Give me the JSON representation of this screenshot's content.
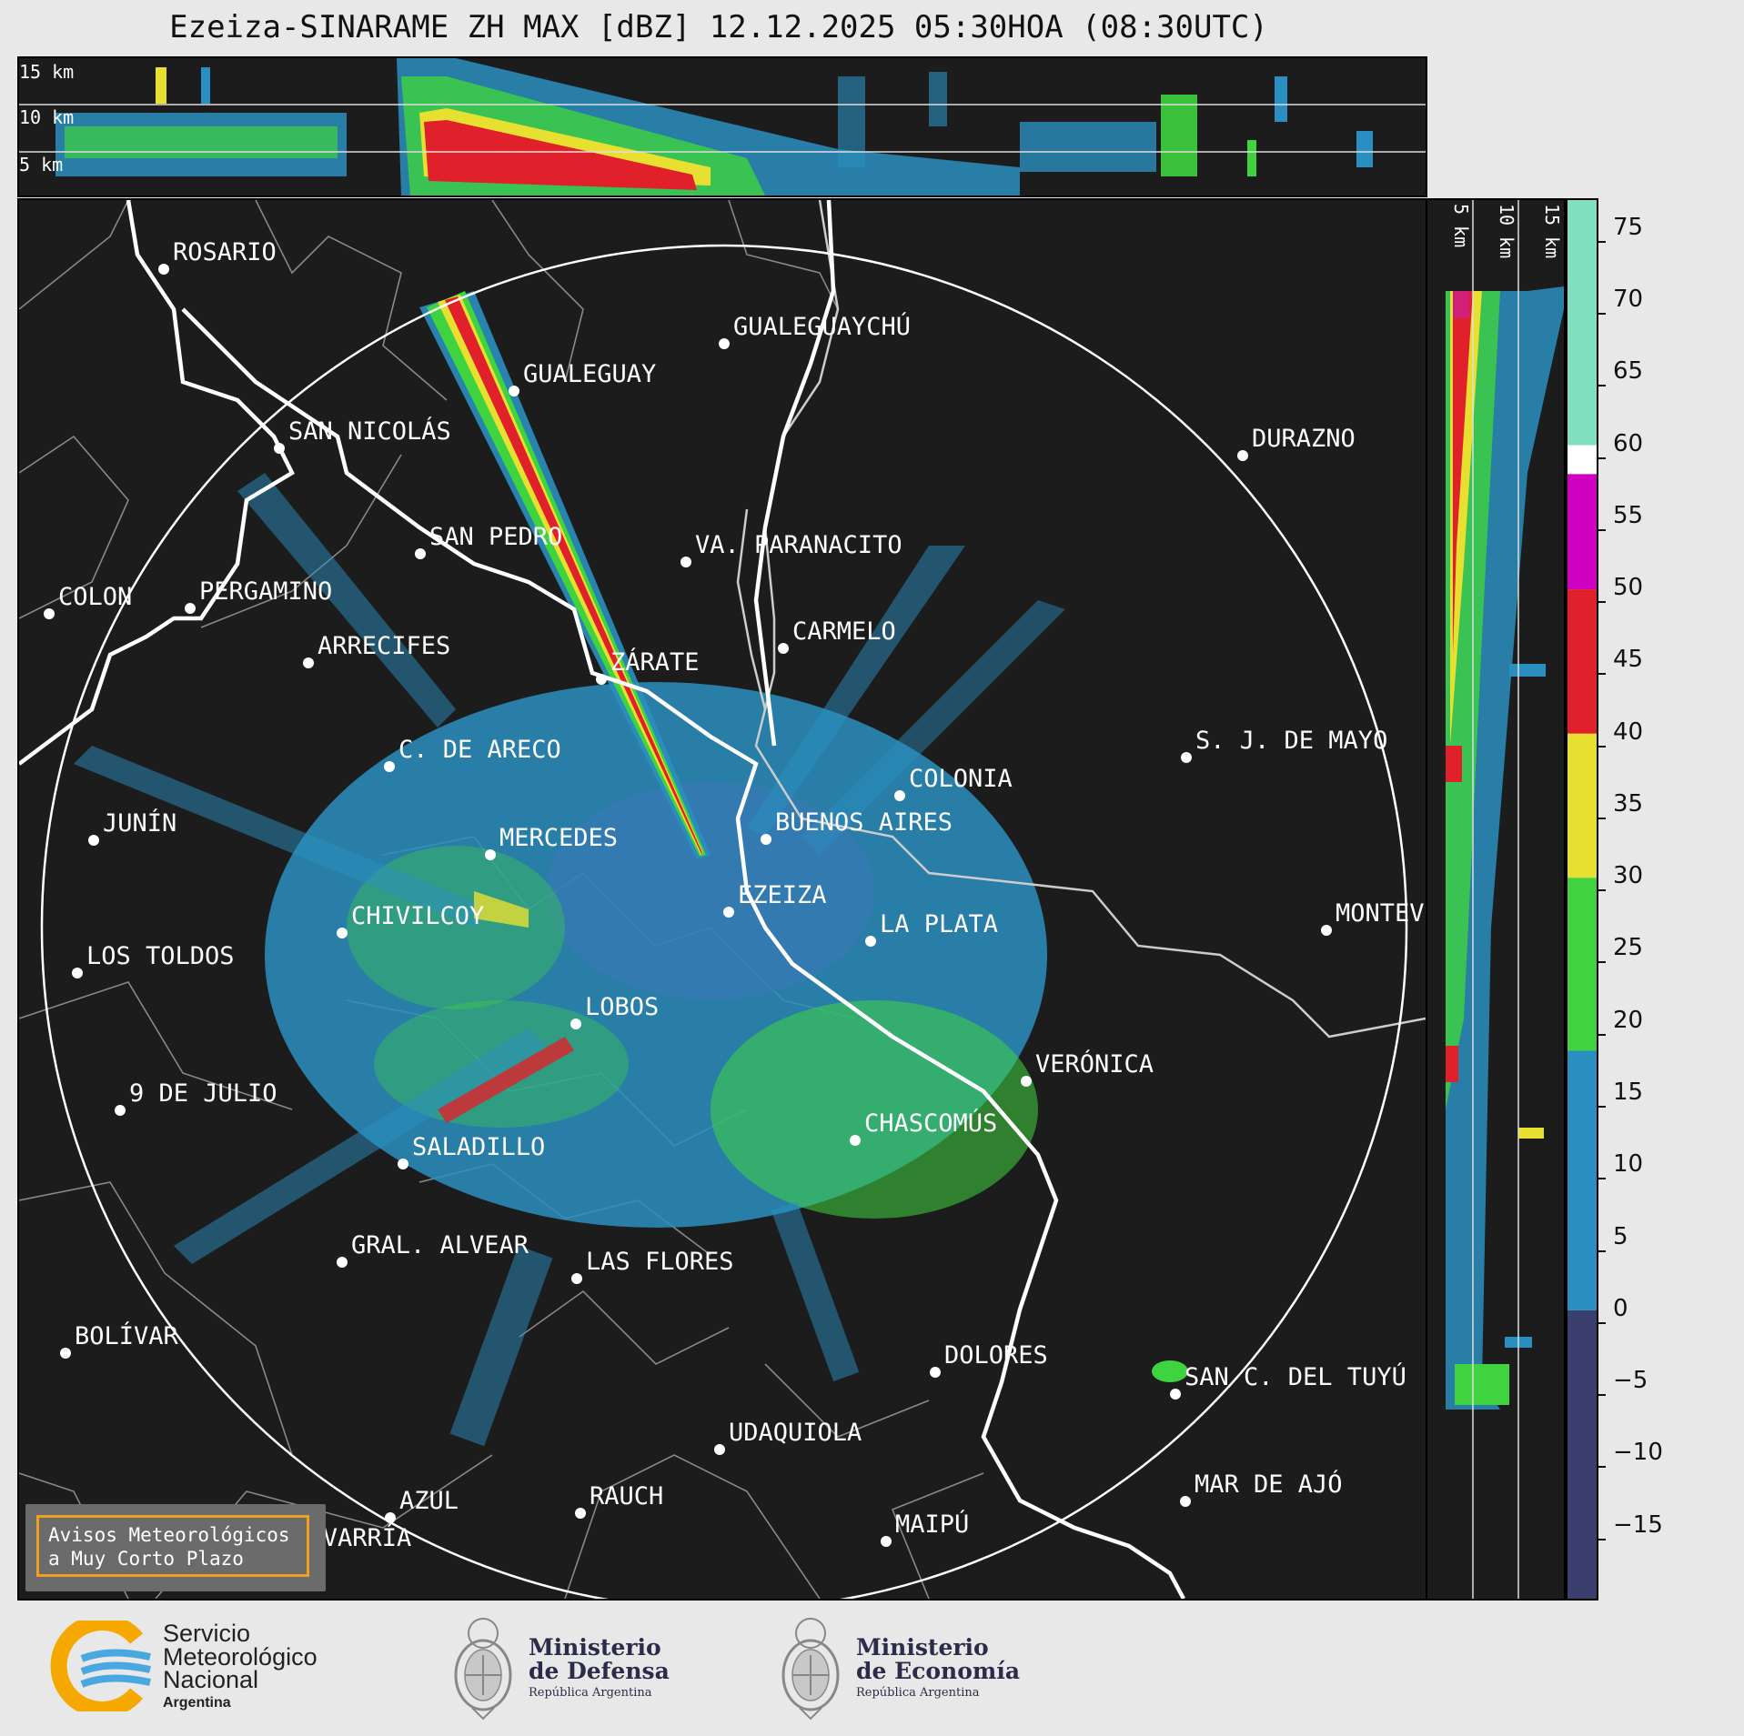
{
  "title": "Ezeiza-SINARAME ZH MAX [dBZ] 12.12.2025 05:30HOA (08:30UTC)",
  "cross_section_top": {
    "height_labels": [
      "15 km",
      "10 km",
      "5 km"
    ]
  },
  "cross_section_right": {
    "height_labels": [
      "5 km",
      "10 km",
      "15 km"
    ]
  },
  "colorbar": {
    "unit": "dBZ",
    "tick_labels": [
      "75",
      "70",
      "65",
      "60",
      "55",
      "50",
      "45",
      "40",
      "35",
      "30",
      "25",
      "20",
      "15",
      "10",
      "5",
      "0",
      "−5",
      "−10",
      "−15"
    ],
    "range": [
      -20,
      77
    ],
    "bands": [
      {
        "from": -20,
        "to": 0,
        "color": "#3a3f6e"
      },
      {
        "from": 0,
        "to": 18,
        "color": "#2a8fc0"
      },
      {
        "from": 18,
        "to": 30,
        "color": "#3fd33f"
      },
      {
        "from": 30,
        "to": 40,
        "color": "#e8e030"
      },
      {
        "from": 40,
        "to": 50,
        "color": "#e0202a"
      },
      {
        "from": 50,
        "to": 58,
        "color": "#d000c0"
      },
      {
        "from": 58,
        "to": 60,
        "color": "#ffffff"
      },
      {
        "from": 60,
        "to": 77,
        "color": "#80e0c0"
      }
    ]
  },
  "map": {
    "radar_site": "EZEIZA",
    "cities": [
      {
        "name": "ROSARIO"
      },
      {
        "name": "GUALEGUAYCHÚ"
      },
      {
        "name": "GUALEGUAY"
      },
      {
        "name": "SAN NICOLÁS"
      },
      {
        "name": "DURAZNO"
      },
      {
        "name": "SAN PEDRO"
      },
      {
        "name": "VA. PARANACITO"
      },
      {
        "name": "COLON"
      },
      {
        "name": "PERGAMINO"
      },
      {
        "name": "CARMELO"
      },
      {
        "name": "ARRECIFES"
      },
      {
        "name": "ZÁRATE"
      },
      {
        "name": "S. J. DE MAYO"
      },
      {
        "name": "C. DE ARECO"
      },
      {
        "name": "COLONIA"
      },
      {
        "name": "JUNÍN"
      },
      {
        "name": "BUENOS AIRES"
      },
      {
        "name": "MERCEDES"
      },
      {
        "name": "EZEIZA"
      },
      {
        "name": "MONTEVIDEO"
      },
      {
        "name": "CHIVILCOY"
      },
      {
        "name": "LA PLATA"
      },
      {
        "name": "LOS TOLDOS"
      },
      {
        "name": "LOBOS"
      },
      {
        "name": "VERÓNICA"
      },
      {
        "name": "9 DE JULIO"
      },
      {
        "name": "CHASCOMÚS"
      },
      {
        "name": "SALADILLO"
      },
      {
        "name": "GRAL. ALVEAR"
      },
      {
        "name": "LAS FLORES"
      },
      {
        "name": "BOLÍVAR"
      },
      {
        "name": "DOLORES"
      },
      {
        "name": "SAN C. DEL TUYÚ"
      },
      {
        "name": "UDAQUIOLA"
      },
      {
        "name": "MAR DE AJÓ"
      },
      {
        "name": "AZUL"
      },
      {
        "name": "RAUCH"
      },
      {
        "name": "OLAVARRÍA"
      },
      {
        "name": "MAIPÚ"
      }
    ]
  },
  "warning_box": {
    "line1": "Avisos Meteorológicos",
    "line2": "a Muy Corto Plazo"
  },
  "footer": {
    "smn": {
      "line1": "Servicio",
      "line2": "Meteorológico",
      "line3": "Nacional",
      "line4": "Argentina"
    },
    "defensa": {
      "line1": "Ministerio",
      "line2": "de Defensa",
      "line3": "República Argentina"
    },
    "economia": {
      "line1": "Ministerio",
      "line2": "de Economía",
      "line3": "República Argentina"
    }
  },
  "colors": {
    "background": "#e8e8e8",
    "panel": "#1c1c1c",
    "accent": "#f0a020"
  }
}
